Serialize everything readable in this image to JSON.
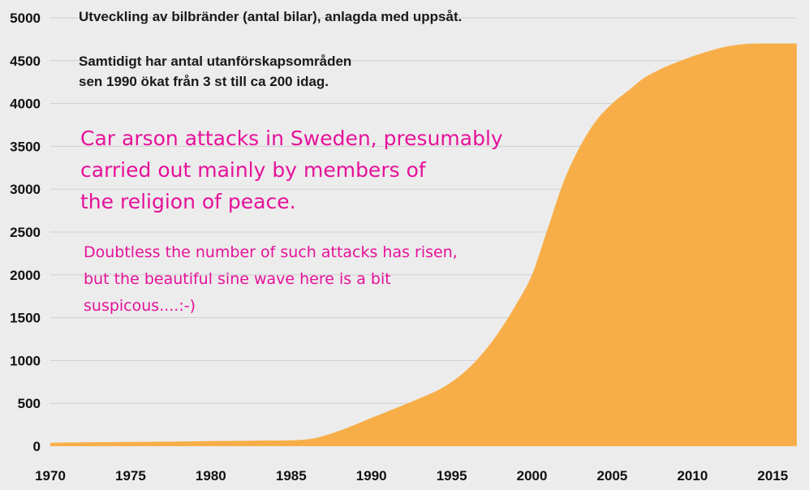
{
  "chart_data": {
    "type": "area",
    "title": "Utveckling av bilbränder (antal bilar), anlagda med uppsåt.",
    "subtitle": [
      "Samtidigt har antal utanförskapsområden",
      "sen 1990 ökat från 3 st till ca 200 idag."
    ],
    "xlabel": "",
    "ylabel": "",
    "xlim": [
      1970,
      2016.5
    ],
    "ylim": [
      0,
      5000
    ],
    "x_ticks": [
      1970,
      1975,
      1980,
      1985,
      1990,
      1995,
      2000,
      2005,
      2010,
      2015
    ],
    "y_ticks": [
      0,
      500,
      1000,
      1500,
      2000,
      2500,
      3000,
      3500,
      4000,
      4500,
      5000
    ],
    "grid": "horizontal",
    "colors": {
      "area": "#f8ae48",
      "grid": "#cfcfcf",
      "background": "#ececec",
      "annotation": "#e6119a"
    },
    "series": [
      {
        "x": [
          1970,
          1972,
          1975,
          1978,
          1980,
          1983,
          1986,
          1988,
          1990,
          1992,
          1994,
          1995,
          1996,
          1997,
          1998,
          1999,
          2000,
          2001,
          2002,
          2003,
          2004,
          2005,
          2006,
          2007,
          2008,
          2009,
          2010,
          2011,
          2012,
          2013,
          2014,
          2015,
          2016.5
        ],
        "values": [
          40,
          45,
          50,
          55,
          60,
          65,
          80,
          180,
          330,
          480,
          640,
          750,
          900,
          1100,
          1350,
          1650,
          2000,
          2550,
          3100,
          3500,
          3800,
          4000,
          4150,
          4300,
          4400,
          4480,
          4550,
          4610,
          4660,
          4690,
          4700,
          4700,
          4700
        ]
      }
    ],
    "annotations": [
      [
        "Car arson attacks in Sweden, presumably",
        "carried out mainly by members of",
        "the religion of peace."
      ],
      [
        "Doubtless the number of such attacks has risen,",
        "but the beautiful sine wave here is a bit",
        "suspicous....:-)"
      ]
    ]
  }
}
